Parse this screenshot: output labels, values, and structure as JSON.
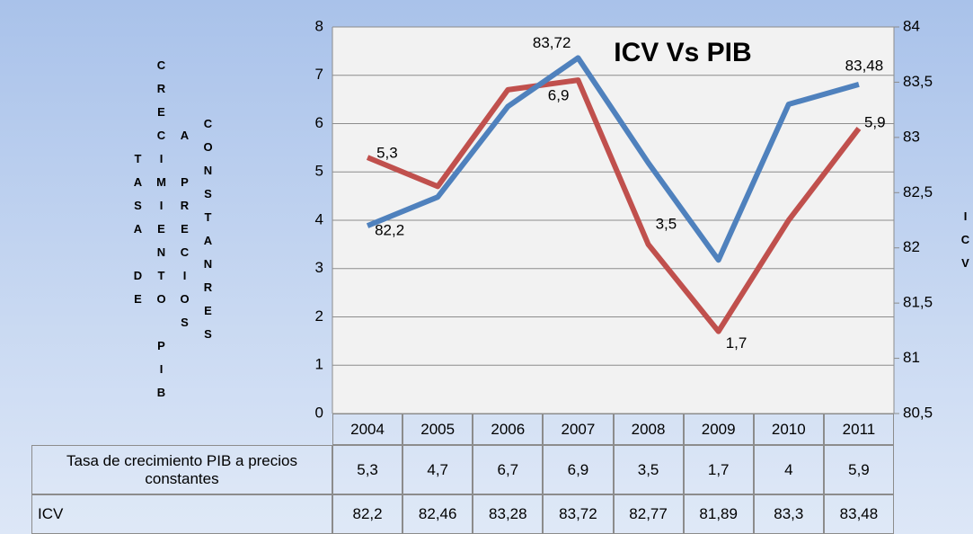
{
  "chart_data": {
    "type": "line",
    "title": "ICV Vs PIB",
    "ylabel": "TASA DE CRECIMIENTO PIB A PRECIOS CONSTANRES",
    "y2label": "ICV",
    "categories": [
      "2004",
      "2005",
      "2006",
      "2007",
      "2008",
      "2009",
      "2010",
      "2011"
    ],
    "series": [
      {
        "name": "Tasa de crecimiento PIB  a precios constantes",
        "color": "#c0504d",
        "axis": "y",
        "values": [
          5.3,
          4.7,
          6.7,
          6.9,
          3.5,
          1.7,
          4,
          5.9
        ],
        "value_labels": [
          "5,3",
          "4,7",
          "6,7",
          "6,9",
          "3,5",
          "1,7",
          "4",
          "5,9"
        ],
        "data_labels": [
          "5,3",
          null,
          null,
          "6,9",
          "3,5",
          "1,7",
          null,
          "5,9"
        ]
      },
      {
        "name": "ICV",
        "color": "#4f81bd",
        "axis": "y2",
        "values": [
          82.2,
          82.46,
          83.28,
          83.72,
          82.77,
          81.89,
          83.3,
          83.48
        ],
        "value_labels": [
          "82,2",
          "82,46",
          "83,28",
          "83,72",
          "82,77",
          "81,89",
          "83,3",
          "83,48"
        ],
        "data_labels": [
          "82,2",
          null,
          null,
          "83,72",
          null,
          null,
          null,
          "83,48"
        ]
      }
    ],
    "ylim": [
      0,
      8
    ],
    "yticks": [
      0,
      1,
      2,
      3,
      4,
      5,
      6,
      7,
      8
    ],
    "y2lim": [
      80.5,
      84
    ],
    "y2ticks": [
      {
        "value": 80.5,
        "label": "80,5"
      },
      81,
      {
        "value": 81.5,
        "label": "81,5"
      },
      82,
      {
        "value": 82.5,
        "label": "82,5"
      },
      83,
      {
        "value": 83.5,
        "label": "83,5"
      },
      84
    ],
    "grid": true
  }
}
